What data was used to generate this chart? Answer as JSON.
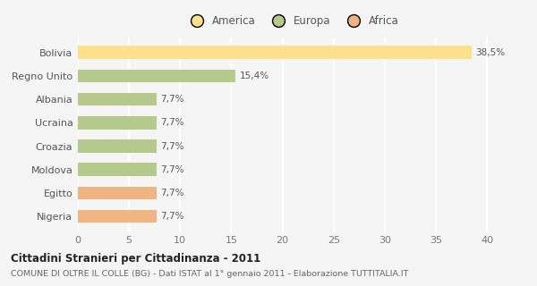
{
  "categories": [
    "Nigeria",
    "Egitto",
    "Moldova",
    "Croazia",
    "Ucraina",
    "Albania",
    "Regno Unito",
    "Bolivia"
  ],
  "values": [
    7.7,
    7.7,
    7.7,
    7.7,
    7.7,
    7.7,
    15.4,
    38.5
  ],
  "colors": [
    "#f0b482",
    "#f0b482",
    "#b5c98a",
    "#b5c98a",
    "#b5c98a",
    "#b5c98a",
    "#b5c98a",
    "#fce08a"
  ],
  "labels": [
    "7,7%",
    "7,7%",
    "7,7%",
    "7,7%",
    "7,7%",
    "7,7%",
    "15,4%",
    "38,5%"
  ],
  "legend": [
    {
      "label": "America",
      "color": "#fce08a"
    },
    {
      "label": "Europa",
      "color": "#b5c98a"
    },
    {
      "label": "Africa",
      "color": "#f0b482"
    }
  ],
  "xlim": [
    0,
    42
  ],
  "xticks": [
    0,
    5,
    10,
    15,
    20,
    25,
    30,
    35,
    40
  ],
  "title": "Cittadini Stranieri per Cittadinanza - 2011",
  "subtitle": "COMUNE DI OLTRE IL COLLE (BG) - Dati ISTAT al 1° gennaio 2011 - Elaborazione TUTTITALIA.IT",
  "background_color": "#f5f5f5",
  "grid_color": "#ffffff",
  "bar_height": 0.55
}
